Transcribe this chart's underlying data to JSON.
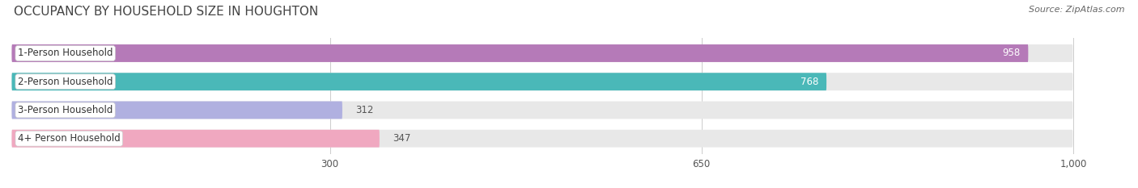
{
  "title": "OCCUPANCY BY HOUSEHOLD SIZE IN HOUGHTON",
  "source": "Source: ZipAtlas.com",
  "categories": [
    "1-Person Household",
    "2-Person Household",
    "3-Person Household",
    "4+ Person Household"
  ],
  "values": [
    958,
    768,
    312,
    347
  ],
  "bar_colors": [
    "#b57ab8",
    "#4ab8b8",
    "#b0b0e0",
    "#f0a8c0"
  ],
  "bar_bg_color": "#e8e8e8",
  "x_max": 1000,
  "x_ticks": [
    300,
    650,
    1000
  ],
  "x_tick_labels": [
    "300",
    "650",
    "1,000"
  ],
  "title_fontsize": 11,
  "label_fontsize": 8.5,
  "value_fontsize": 8.5,
  "source_fontsize": 8,
  "background_color": "#ffffff",
  "row_bg_color": "#f2f2f2"
}
